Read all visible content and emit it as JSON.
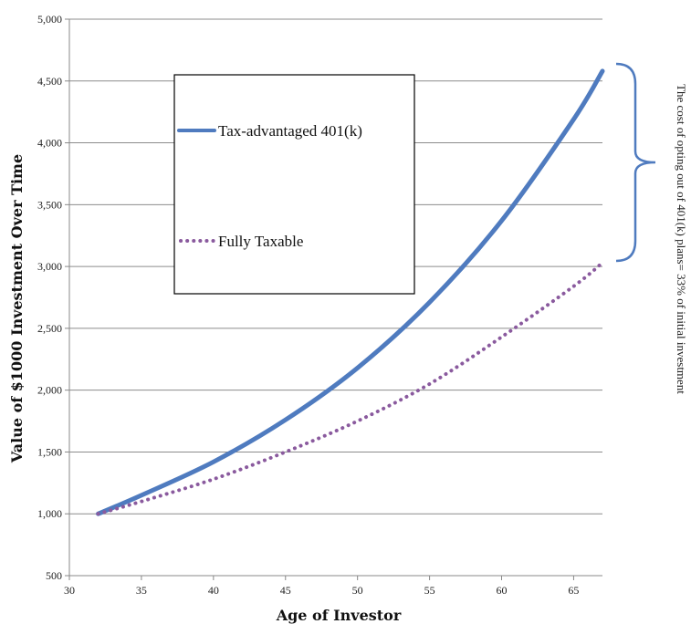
{
  "chart_data": {
    "type": "line",
    "xlabel": "Age of Investor",
    "ylabel": "Value of $1000 Investment Over Time",
    "xlim": [
      30,
      67
    ],
    "ylim": [
      500,
      5000
    ],
    "x_ticks": [
      "30",
      "35",
      "40",
      "45",
      "50",
      "55",
      "60",
      "65"
    ],
    "y_ticks": [
      "500",
      "1,000",
      "1,500",
      "2,000",
      "2,500",
      "3,000",
      "3,500",
      "4,000",
      "4,500",
      "5,000"
    ],
    "grid": "horizontal",
    "legend_position": "upper-left",
    "series": [
      {
        "name": "Tax-advantaged 401(k)",
        "style": "solid",
        "color": "#4f7bbf",
        "x": [
          32,
          35,
          40,
          45,
          50,
          55,
          60,
          65,
          67
        ],
        "y": [
          1000,
          1150,
          1420,
          1760,
          2180,
          2710,
          3370,
          4190,
          4580
        ]
      },
      {
        "name": "Fully Taxable",
        "style": "dotted",
        "color": "#8a5a9e",
        "x": [
          32,
          35,
          40,
          45,
          50,
          55,
          60,
          65,
          67
        ],
        "y": [
          1000,
          1100,
          1280,
          1500,
          1750,
          2050,
          2430,
          2840,
          3030
        ]
      }
    ],
    "annotation": {
      "text": "The cost of opting out of 401(k) plans= 33% of initial investment",
      "bracket_color": "#4f7bbf"
    }
  }
}
